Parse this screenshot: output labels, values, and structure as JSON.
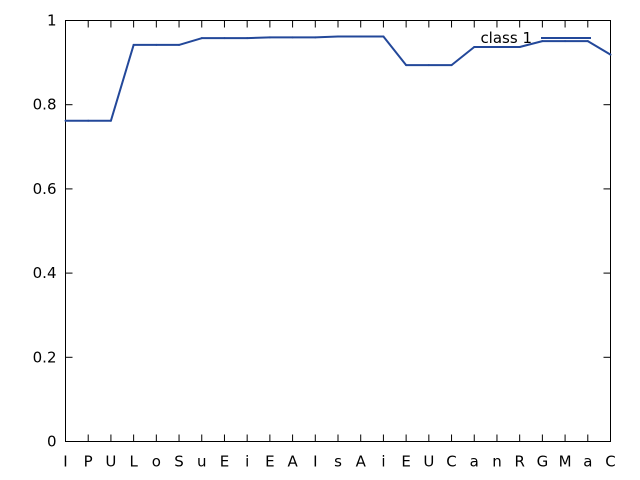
{
  "chart_data": {
    "type": "line",
    "categories": [
      "I",
      "P",
      "U",
      "L",
      "o",
      "S",
      "u",
      "E",
      "i",
      "E",
      "A",
      "I",
      "s",
      "A",
      "i",
      "E",
      "U",
      "C",
      "a",
      "n",
      "R",
      "G",
      "M",
      "a",
      "C"
    ],
    "series": [
      {
        "name": "class 1",
        "color": "#23489a",
        "values": [
          0.762,
          0.762,
          0.762,
          0.942,
          0.942,
          0.942,
          0.958,
          0.958,
          0.958,
          0.96,
          0.96,
          0.96,
          0.962,
          0.962,
          0.962,
          0.894,
          0.894,
          0.894,
          0.937,
          0.937,
          0.937,
          0.951,
          0.951,
          0.951,
          0.919
        ]
      }
    ],
    "title": "",
    "xlabel": "",
    "ylabel": "",
    "ylim": [
      0,
      1
    ],
    "yticks": [
      0,
      0.2,
      0.4,
      0.6,
      0.8,
      1
    ],
    "ytick_labels": [
      "0",
      "0.2",
      "0.4",
      "0.6",
      "0.8",
      "1"
    ],
    "grid": false,
    "legend_position": "top-right"
  }
}
